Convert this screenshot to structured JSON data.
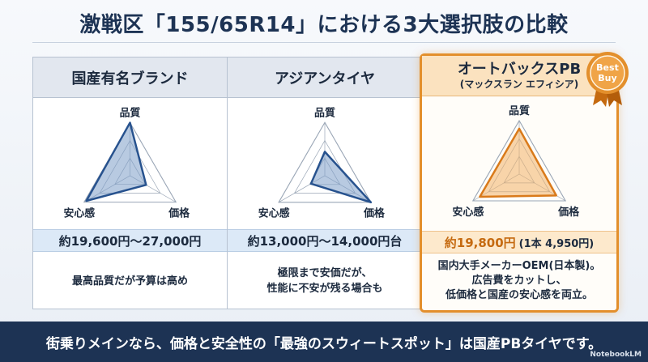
{
  "title": "激戦区「155/65R14」における3大選択肢の比較",
  "axes": {
    "top": "品質",
    "left": "安心感",
    "right": "価格"
  },
  "options": [
    {
      "name": "国産有名ブランド",
      "sub": "",
      "price": "約19,600円〜27,000円",
      "price_sub": "",
      "desc": [
        "最高品質だが予算は高め"
      ],
      "scores": {
        "quality": 1.0,
        "price": 0.35,
        "safety": 0.95
      },
      "stroke_color": "#27528e",
      "fill_color": "#7e9fc8"
    },
    {
      "name": "アジアンタイヤ",
      "sub": "",
      "price": "約13,000円〜14,000円台",
      "price_sub": "",
      "desc": [
        "極限まで安価だが、",
        "性能に不安が残る場合も"
      ],
      "scores": {
        "quality": 0.45,
        "price": 1.0,
        "safety": 0.3
      },
      "stroke_color": "#27528e",
      "fill_color": "#7e9fc8"
    },
    {
      "name": "オートバックスPB",
      "sub": "(マックスラン エフィシア)",
      "price": "約19,800円",
      "price_sub": "(1本 4,950円)",
      "desc": [
        "国内大手メーカーOEM(日本製)。",
        "広告費をカットし、",
        "低価格と国産の安心感を両立。"
      ],
      "scores": {
        "quality": 0.85,
        "price": 0.8,
        "safety": 0.85
      },
      "stroke_color": "#d97a1a",
      "fill_color": "#f2b368"
    }
  ],
  "badge": {
    "line1": "Best",
    "line2": "Buy",
    "color": "#e38f2c"
  },
  "footer": "街乗りメインなら、価格と安全性の「最強のスウィートスポット」は国産PBタイヤです。",
  "watermark": "NotebookLM"
}
